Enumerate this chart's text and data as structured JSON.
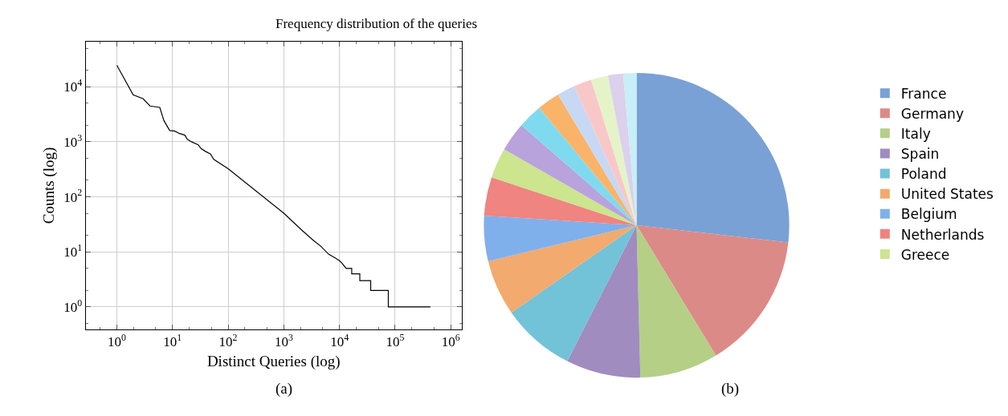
{
  "chart_data": [
    {
      "type": "line",
      "title": "Frequency distribution of the queries",
      "xlabel": "Distinct Queries (log)",
      "ylabel": "Counts (log)",
      "log": "xy",
      "grid": true,
      "annotations": [
        "(a)"
      ],
      "xlim": [
        0.275,
        1570000
      ],
      "ylim": [
        0.39,
        66000
      ],
      "xticks": [
        {
          "value": 1,
          "label": "10$^{0}$"
        },
        {
          "value": 10,
          "label": "10$^{1}$"
        },
        {
          "value": 100,
          "label": "10$^{2}$"
        },
        {
          "value": 1000,
          "label": "10$^{3}$"
        },
        {
          "value": 10000,
          "label": "10$^{4}$"
        },
        {
          "value": 100000,
          "label": "10$^{5}$"
        },
        {
          "value": 1000000,
          "label": "10$^{6}$"
        }
      ],
      "yticks": [
        {
          "value": 1,
          "label": "10$^{0}$"
        },
        {
          "value": 10,
          "label": "10$^{1}$"
        },
        {
          "value": 100,
          "label": "10$^{2}$"
        },
        {
          "value": 1000,
          "label": "10$^{3}$"
        },
        {
          "value": 10000,
          "label": "10$^{4}$"
        }
      ],
      "series": [
        {
          "color": "#000000",
          "x": [
            1,
            1.96,
            2.97,
            3.94,
            5.9,
            7.0,
            8.9,
            10.8,
            13.2,
            16.6,
            18.5,
            21.9,
            29,
            32.5,
            38.5,
            48.2,
            55,
            100,
            1000,
            2075,
            3440,
            4560,
            6380,
            8450,
            10000,
            11200,
            13200,
            16600,
            16600,
            23200,
            23200,
            36400,
            36400,
            75500,
            75500,
            431000
          ],
          "values": [
            24500,
            7150,
            6030,
            4460,
            4210,
            2430,
            1600,
            1570,
            1420,
            1320,
            1110,
            1000,
            880,
            755,
            675,
            600,
            480,
            325,
            50.4,
            25.1,
            16,
            12.8,
            9.1,
            7.7,
            6.9,
            6.2,
            5,
            5,
            4,
            4,
            3,
            3,
            2,
            2,
            1,
            1
          ]
        }
      ]
    },
    {
      "type": "pie",
      "annotations": [
        "(b)"
      ],
      "legend": "right",
      "categories": [
        "France",
        "Germany",
        "Italy",
        "Spain",
        "Poland",
        "United States",
        "Belgium",
        "Netherlands",
        "Greece",
        null,
        null,
        null,
        null,
        null,
        null,
        null,
        null
      ],
      "values": [
        26.8,
        14.5,
        8.3,
        7.9,
        7.8,
        5.9,
        4.8,
        4.1,
        3.2,
        3.1,
        2.6,
        2.4,
        1.9,
        1.9,
        1.8,
        1.6,
        1.4
      ],
      "colors": [
        "#79a1d6",
        "#dc8a87",
        "#b5cf86",
        "#a08cbf",
        "#72c2d8",
        "#f2aa6e",
        "#7fb0ec",
        "#ef8480",
        "#cce58e",
        "#b8a3dc",
        "#7fdaf0",
        "#f9b46a",
        "#c6d8f4",
        "#f8c8c8",
        "#e4f4c8",
        "#dcd0ec",
        "#c8eef8"
      ]
    }
  ]
}
